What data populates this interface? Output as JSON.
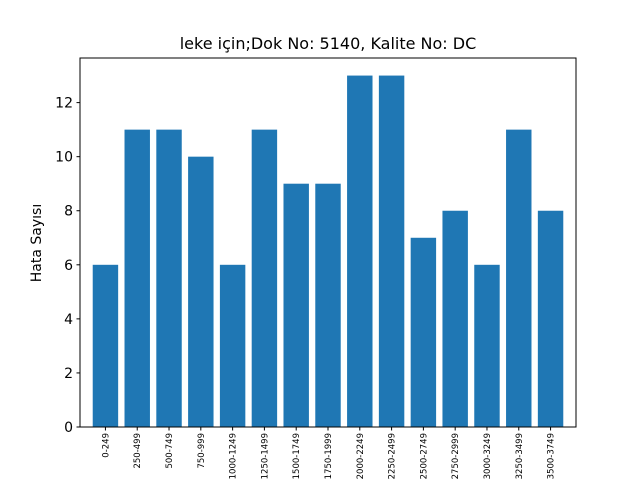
{
  "chart_data": {
    "type": "bar",
    "title": "leke için;Dok No: 5140, Kalite No: DC",
    "xlabel": "",
    "ylabel": "Hata Sayısı",
    "categories": [
      "0-249",
      "250-499",
      "500-749",
      "750-999",
      "1000-1249",
      "1250-1499",
      "1500-1749",
      "1750-1999",
      "2000-2249",
      "2250-2499",
      "2500-2749",
      "2750-2999",
      "3000-3249",
      "3250-3499",
      "3500-3749"
    ],
    "values": [
      6,
      11,
      11,
      10,
      6,
      11,
      9,
      9,
      13,
      13,
      7,
      8,
      6,
      11,
      8
    ],
    "ylim": [
      0,
      13.65
    ],
    "yticks": [
      0,
      2,
      4,
      6,
      8,
      10,
      12
    ],
    "bar_color": "#1f77b4",
    "grid": false,
    "legend": "none"
  }
}
